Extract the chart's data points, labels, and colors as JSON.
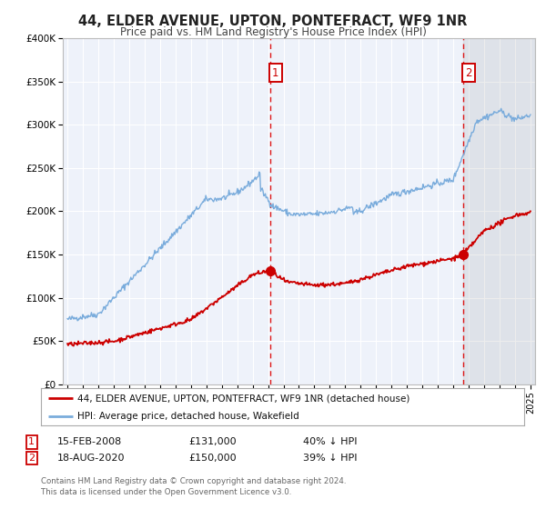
{
  "title": "44, ELDER AVENUE, UPTON, PONTEFRACT, WF9 1NR",
  "subtitle": "Price paid vs. HM Land Registry's House Price Index (HPI)",
  "ylim": [
    0,
    400000
  ],
  "xlim_start": 1994.7,
  "xlim_end": 2025.3,
  "background_color": "#ffffff",
  "plot_bg_color": "#eef2fa",
  "grid_color": "#ffffff",
  "red_line_color": "#cc0000",
  "blue_line_color": "#7aacdc",
  "marker1_x": 2008.12,
  "marker1_y": 131000,
  "marker2_x": 2020.63,
  "marker2_y": 150000,
  "vline1_x": 2008.12,
  "vline2_x": 2020.63,
  "legend_line1": "44, ELDER AVENUE, UPTON, PONTEFRACT, WF9 1NR (detached house)",
  "legend_line2": "HPI: Average price, detached house, Wakefield",
  "table_row1": [
    "1",
    "15-FEB-2008",
    "£131,000",
    "40% ↓ HPI"
  ],
  "table_row2": [
    "2",
    "18-AUG-2020",
    "£150,000",
    "39% ↓ HPI"
  ],
  "footer": "Contains HM Land Registry data © Crown copyright and database right 2024.\nThis data is licensed under the Open Government Licence v3.0.",
  "yticks": [
    0,
    50000,
    100000,
    150000,
    200000,
    250000,
    300000,
    350000,
    400000
  ],
  "ytick_labels": [
    "£0",
    "£50K",
    "£100K",
    "£150K",
    "£200K",
    "£250K",
    "£300K",
    "£350K",
    "£400K"
  ],
  "xticks": [
    1995,
    1996,
    1997,
    1998,
    1999,
    2000,
    2001,
    2002,
    2003,
    2004,
    2005,
    2006,
    2007,
    2008,
    2009,
    2010,
    2011,
    2012,
    2013,
    2014,
    2015,
    2016,
    2017,
    2018,
    2019,
    2020,
    2021,
    2022,
    2023,
    2024,
    2025
  ]
}
